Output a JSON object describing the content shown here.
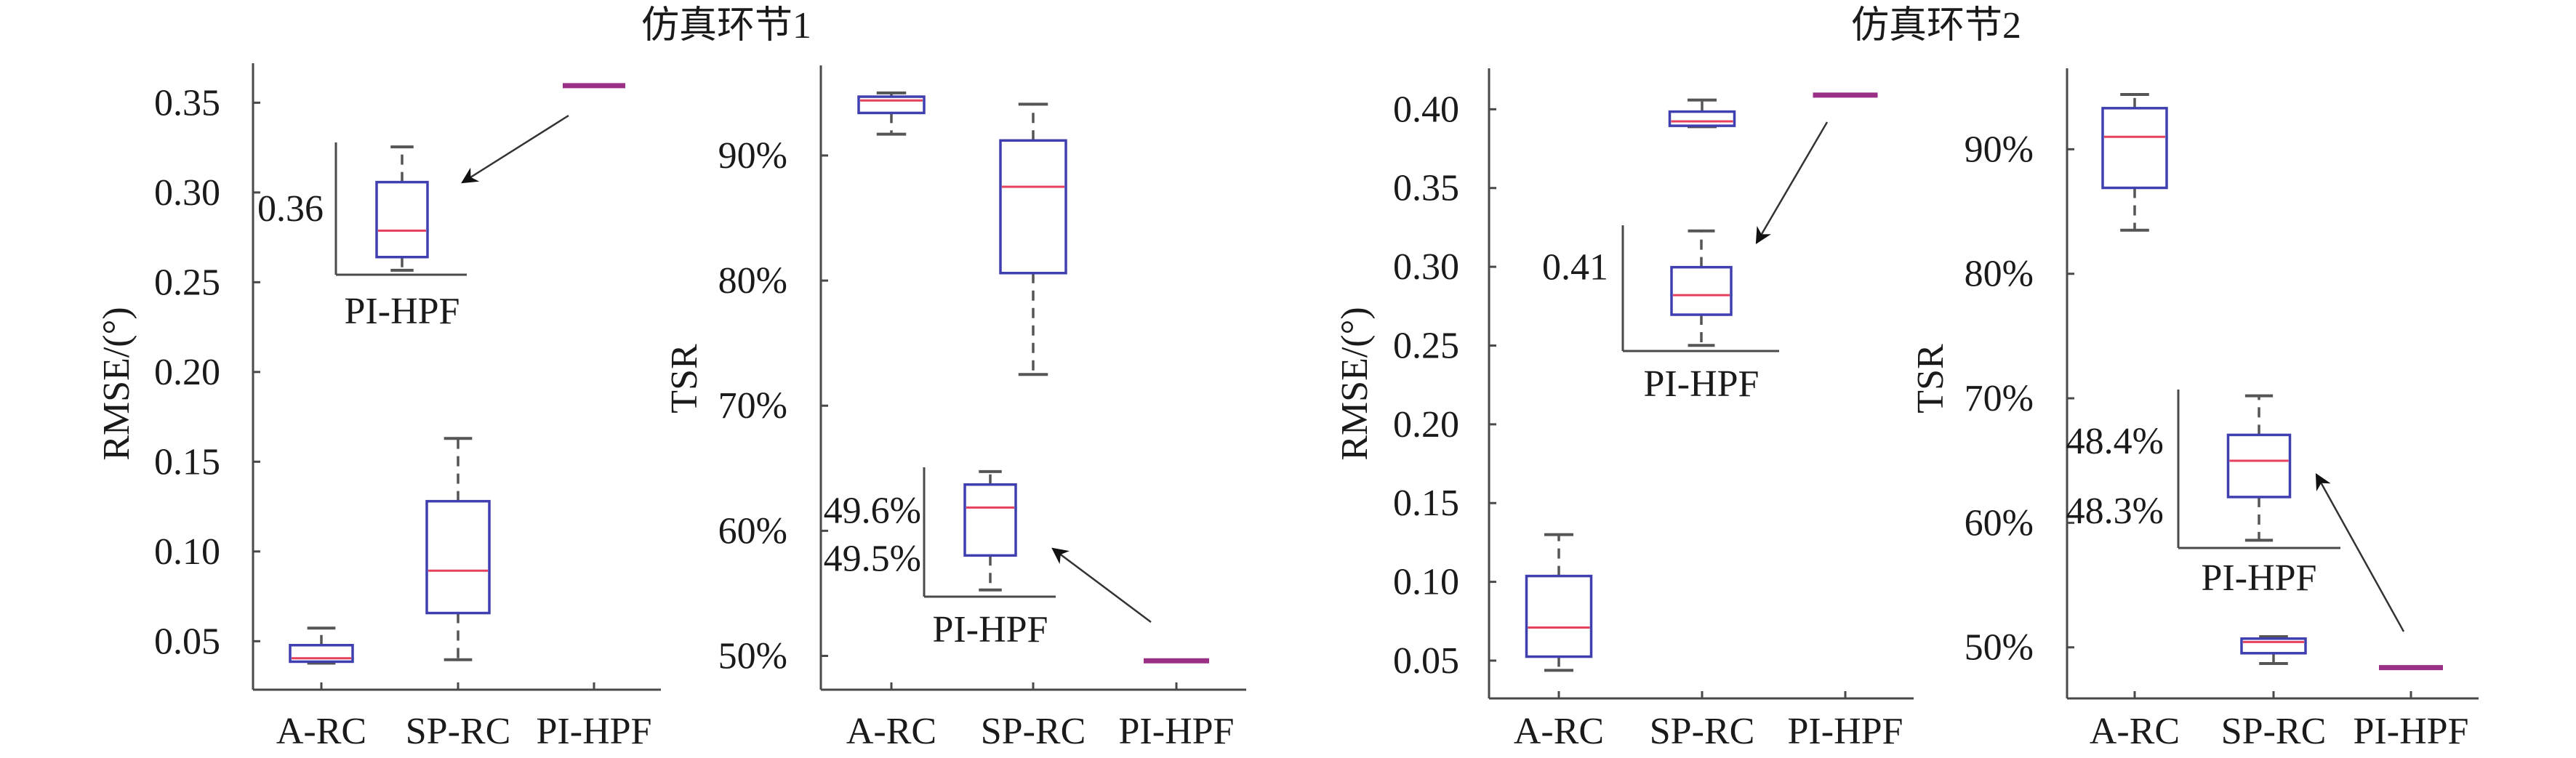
{
  "figure": {
    "group_titles": [
      "仿真环节1",
      "仿真环节2"
    ]
  },
  "colors": {
    "box": "#3f3fb0",
    "median": "#e6405c",
    "whisker": "#555555",
    "flat_line": "#9a2f86"
  },
  "chart_data": [
    {
      "type": "box",
      "group": "仿真环节1",
      "ylabel": "RMSE/(°)",
      "categories": [
        "A-RC",
        "SP-RC",
        "PI-HPF"
      ],
      "ylim": [
        0.023,
        0.372
      ],
      "yticks": [
        0.05,
        0.1,
        0.15,
        0.2,
        0.25,
        0.3,
        0.35
      ],
      "ytick_labels": [
        "0.05",
        "0.10",
        "0.15",
        "0.20",
        "0.25",
        "0.30",
        "0.35"
      ],
      "stats": [
        {
          "min": 0.0378,
          "q1": 0.0386,
          "median": 0.0405,
          "q3": 0.0478,
          "max": 0.0573
        },
        {
          "min": 0.0397,
          "q1": 0.0657,
          "median": 0.0893,
          "q3": 0.128,
          "max": 0.163
        },
        {
          "min": 0.3586,
          "q1": 0.3589,
          "median": 0.3595,
          "q3": 0.3606,
          "max": 0.3614
        }
      ],
      "inset": {
        "category": "PI-HPF",
        "ylim": [
          0.3585,
          0.3615
        ],
        "yticks": [
          0.36
        ],
        "ytick_labels": [
          "0.36"
        ]
      }
    },
    {
      "type": "box",
      "group": "仿真环节1",
      "ylabel": "TSR",
      "categories": [
        "A-RC",
        "SP-RC",
        "PI-HPF"
      ],
      "ylim": [
        47.3,
        97.2
      ],
      "yticks": [
        50,
        60,
        70,
        80,
        90
      ],
      "ytick_labels": [
        "50%",
        "60%",
        "70%",
        "80%",
        "90%"
      ],
      "stats": [
        {
          "min": 91.7,
          "q1": 93.4,
          "median": 94.4,
          "q3": 94.7,
          "max": 95.0
        },
        {
          "min": 72.5,
          "q1": 80.6,
          "median": 87.5,
          "q3": 91.2,
          "max": 94.1
        },
        {
          "min": 49.434,
          "q1": 49.506,
          "median": 49.606,
          "q3": 49.654,
          "max": 49.681
        }
      ],
      "inset": {
        "category": "PI-HPF",
        "ylim": [
          49.42,
          49.69
        ],
        "yticks": [
          49.5,
          49.6
        ],
        "ytick_labels": [
          "49.5%",
          "49.6%"
        ]
      }
    },
    {
      "type": "box",
      "group": "仿真环节2",
      "ylabel": "RMSE/(°)",
      "categories": [
        "A-RC",
        "SP-RC",
        "PI-HPF"
      ],
      "ylim": [
        0.026,
        0.426
      ],
      "yticks": [
        0.05,
        0.1,
        0.15,
        0.2,
        0.25,
        0.3,
        0.35,
        0.4
      ],
      "ytick_labels": [
        "0.05",
        "0.10",
        "0.15",
        "0.20",
        "0.25",
        "0.30",
        "0.35",
        "0.40"
      ],
      "stats": [
        {
          "min": 0.0438,
          "q1": 0.0525,
          "median": 0.071,
          "q3": 0.1037,
          "max": 0.13
        },
        {
          "min": 0.3889,
          "q1": 0.3895,
          "median": 0.3923,
          "q3": 0.3985,
          "max": 0.4059
        },
        {
          "min": 0.4072,
          "q1": 0.4083,
          "median": 0.409,
          "q3": 0.41,
          "max": 0.4113
        }
      ],
      "inset": {
        "category": "PI-HPF",
        "ylim": [
          0.407,
          0.4115
        ],
        "yticks": [
          0.41
        ],
        "ytick_labels": [
          "0.41"
        ]
      }
    },
    {
      "type": "box",
      "group": "仿真环节2",
      "ylabel": "TSR",
      "categories": [
        "A-RC",
        "SP-RC",
        "PI-HPF"
      ],
      "ylim": [
        45.9,
        96.5
      ],
      "yticks": [
        50,
        60,
        70,
        80,
        90
      ],
      "ytick_labels": [
        "50%",
        "60%",
        "70%",
        "80%",
        "90%"
      ],
      "stats": [
        {
          "min": 83.5,
          "q1": 86.9,
          "median": 91.0,
          "q3": 93.3,
          "max": 94.4
        },
        {
          "min": 48.7,
          "q1": 49.53,
          "median": 50.43,
          "q3": 50.7,
          "max": 50.86
        },
        {
          "min": 48.258,
          "q1": 48.32,
          "median": 48.372,
          "q3": 48.409,
          "max": 48.465
        }
      ],
      "inset": {
        "category": "PI-HPF",
        "ylim": [
          48.247,
          48.474
        ],
        "yticks": [
          48.3,
          48.4
        ],
        "ytick_labels": [
          "48.3%",
          "48.4%"
        ]
      }
    }
  ]
}
